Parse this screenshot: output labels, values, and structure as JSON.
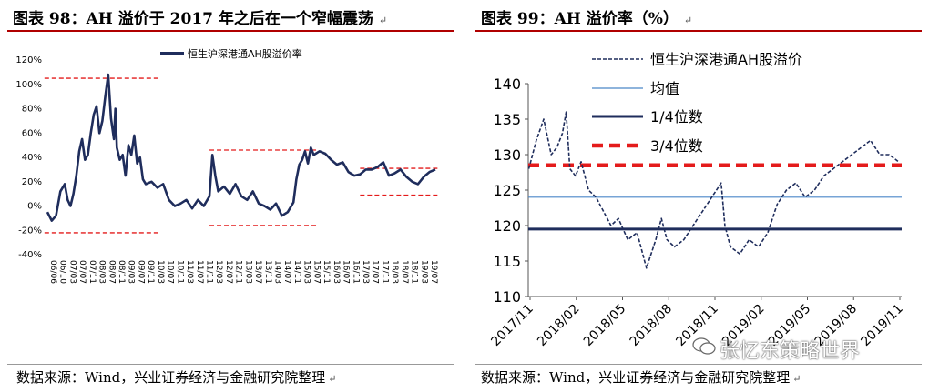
{
  "titles": {
    "left": "图表 98：AH 溢价于 2017 年之后在一个窄幅震荡",
    "right": "图表 99：AH 溢价率（%）",
    "return_mark": "↵"
  },
  "sources": {
    "left": "数据来源：Wind，兴业证券经济与金融研究院整理",
    "right": "数据来源：Wind，兴业证券经济与金融研究院整理",
    "return_mark": "↵"
  },
  "watermark": {
    "text": "张忆东策略世界",
    "icon": "wechat-icon"
  },
  "colors": {
    "navy": "#1f2d5c",
    "red_dash": "#e41b1b",
    "mean_line": "#4a86c8",
    "title_rule": "#b00000"
  },
  "chart_data": [
    {
      "type": "line",
      "legend": [
        "恒生沪深港通AH股溢价率"
      ],
      "legend_position": "top-center",
      "y_ticks": [
        "120%",
        "100%",
        "80%",
        "60%",
        "40%",
        "20%",
        "0%",
        "-20%",
        "-40%"
      ],
      "ylim": [
        -40,
        120
      ],
      "x_ticks": [
        "06/06",
        "06/10",
        "07/03",
        "07/07",
        "07/11",
        "08/03",
        "08/07",
        "08/11",
        "09/03",
        "09/07",
        "09/11",
        "10/03",
        "10/07",
        "10/11",
        "11/03",
        "11/07",
        "11/11",
        "12/03",
        "12/07",
        "12/11",
        "13/03",
        "13/07",
        "13/11",
        "14/03",
        "14/07",
        "14/11",
        "15/03",
        "15/07",
        "15/11",
        "16/03",
        "16/07",
        "16/11",
        "17/03",
        "17/07",
        "17/11",
        "18/03",
        "18/07",
        "18/11",
        "19/03",
        "19/07"
      ],
      "x_range": [
        2006.4,
        2019.8
      ],
      "series": [
        {
          "color": "#1f2d5c",
          "x": [
            2006.4,
            2006.55,
            2006.7,
            2006.85,
            2007.0,
            2007.1,
            2007.2,
            2007.3,
            2007.4,
            2007.5,
            2007.6,
            2007.7,
            2007.8,
            2007.9,
            2008.0,
            2008.1,
            2008.2,
            2008.3,
            2008.4,
            2008.5,
            2008.6,
            2008.7,
            2008.75,
            2008.8,
            2008.9,
            2009.0,
            2009.1,
            2009.2,
            2009.3,
            2009.4,
            2009.5,
            2009.6,
            2009.7,
            2009.8,
            2010.0,
            2010.2,
            2010.4,
            2010.6,
            2010.8,
            2011.0,
            2011.2,
            2011.4,
            2011.6,
            2011.8,
            2012.0,
            2012.1,
            2012.2,
            2012.3,
            2012.5,
            2012.7,
            2012.9,
            2013.1,
            2013.3,
            2013.5,
            2013.7,
            2013.9,
            2014.1,
            2014.3,
            2014.5,
            2014.7,
            2014.9,
            2015.0,
            2015.1,
            2015.2,
            2015.3,
            2015.4,
            2015.5,
            2015.6,
            2015.8,
            2016.0,
            2016.2,
            2016.4,
            2016.6,
            2016.8,
            2017.0,
            2017.2,
            2017.4,
            2017.6,
            2017.8,
            2018.0,
            2018.2,
            2018.4,
            2018.6,
            2018.8,
            2019.0,
            2019.2,
            2019.4,
            2019.6,
            2019.8
          ],
          "values": [
            -5,
            -12,
            -8,
            12,
            18,
            5,
            0,
            10,
            25,
            45,
            55,
            38,
            42,
            60,
            75,
            82,
            60,
            70,
            90,
            108,
            72,
            55,
            80,
            48,
            38,
            42,
            25,
            50,
            42,
            58,
            35,
            40,
            22,
            18,
            20,
            15,
            18,
            5,
            0,
            2,
            5,
            -2,
            5,
            0,
            8,
            42,
            25,
            12,
            16,
            10,
            18,
            8,
            5,
            12,
            2,
            0,
            -3,
            2,
            -8,
            -5,
            3,
            22,
            34,
            38,
            45,
            35,
            48,
            42,
            45,
            43,
            38,
            34,
            36,
            28,
            25,
            26,
            30,
            30,
            32,
            36,
            25,
            27,
            30,
            24,
            20,
            18,
            24,
            28,
            30
          ]
        }
      ],
      "reference_lines": [
        {
          "style": "red-dash",
          "x": [
            2006.3,
            2010.3
          ],
          "y": 105
        },
        {
          "style": "red-dash",
          "x": [
            2006.3,
            2010.3
          ],
          "y": -22
        },
        {
          "style": "red-dash",
          "x": [
            2012.0,
            2015.7
          ],
          "y": 46
        },
        {
          "style": "red-dash",
          "x": [
            2012.0,
            2015.7
          ],
          "y": -16
        },
        {
          "style": "red-dash",
          "x": [
            2017.2,
            2019.9
          ],
          "y": 31
        },
        {
          "style": "red-dash",
          "x": [
            2017.2,
            2019.9
          ],
          "y": 9
        }
      ]
    },
    {
      "type": "line",
      "legend": [
        "恒生沪深港通AH股溢价",
        "均值",
        "1/4位数",
        "3/4位数"
      ],
      "legend_position": "top-right",
      "y_ticks": [
        "140",
        "135",
        "130",
        "125",
        "120",
        "115",
        "110"
      ],
      "ylim": [
        110,
        140
      ],
      "x_ticks": [
        "2017/11",
        "2018/02",
        "2018/05",
        "2018/08",
        "2018/11",
        "2019/02",
        "2019/05",
        "2019/08",
        "2019/11"
      ],
      "x_range": [
        2017.917,
        2019.917
      ],
      "series": [
        {
          "name": "恒生沪深港通AH股溢价",
          "color": "#1f2d5c",
          "x": [
            2017.92,
            2017.96,
            2018.0,
            2018.04,
            2018.07,
            2018.1,
            2018.12,
            2018.14,
            2018.17,
            2018.2,
            2018.24,
            2018.28,
            2018.32,
            2018.36,
            2018.4,
            2018.45,
            2018.5,
            2018.55,
            2018.6,
            2018.63,
            2018.66,
            2018.7,
            2018.75,
            2018.8,
            2018.85,
            2018.9,
            2018.95,
            2018.97,
            2019.0,
            2019.05,
            2019.1,
            2019.15,
            2019.2,
            2019.25,
            2019.3,
            2019.35,
            2019.4,
            2019.45,
            2019.5,
            2019.55,
            2019.6,
            2019.65,
            2019.7,
            2019.75,
            2019.8,
            2019.85,
            2019.9
          ],
          "values": [
            128,
            132,
            135,
            130,
            131,
            133,
            136,
            128,
            127,
            129,
            125,
            124,
            122,
            120,
            121,
            118,
            119,
            114,
            118,
            121,
            118,
            117,
            118,
            120,
            122,
            124,
            126,
            120,
            117,
            116,
            118,
            117,
            119,
            123,
            125,
            126,
            124,
            125,
            127,
            128,
            129,
            130,
            131,
            132,
            130,
            130,
            129
          ]
        },
        {
          "name": "均值",
          "color": "#4a86c8",
          "value": 124
        },
        {
          "name": "1/4位数",
          "color": "#1f2d5c",
          "value": 119.5
        },
        {
          "name": "3/4位数",
          "color": "#e41b1b",
          "value": 128.5
        }
      ]
    }
  ]
}
